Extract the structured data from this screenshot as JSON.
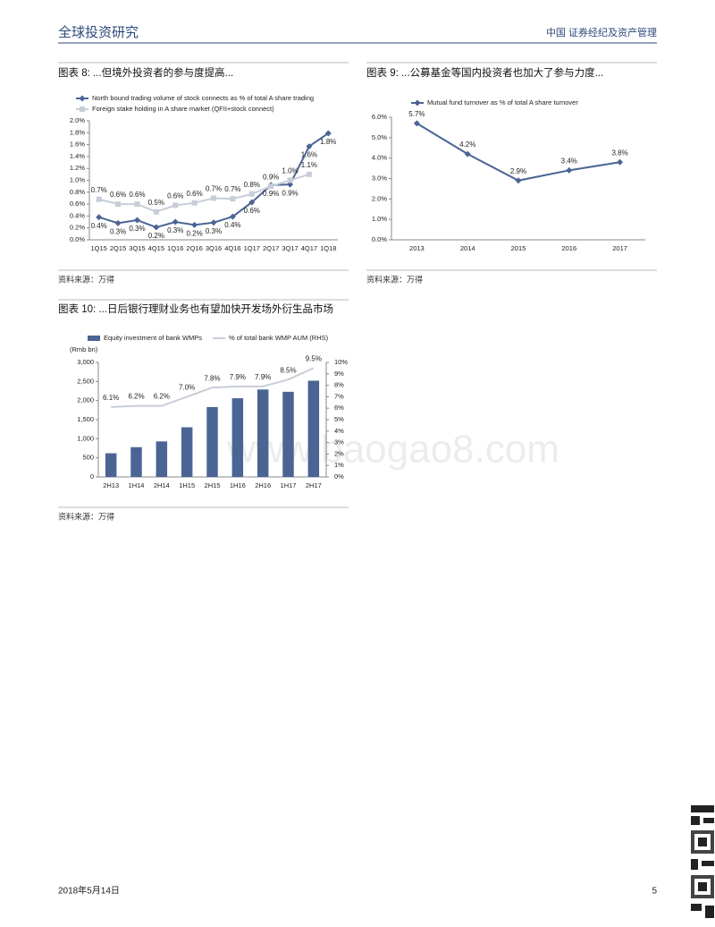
{
  "header": {
    "left": "全球投资研究",
    "right": "中国 证券经纪及资产管理"
  },
  "footer": {
    "date": "2018年5月14日",
    "page": "5"
  },
  "watermark": "www.baogao8.com",
  "chart_data": [
    {
      "type": "line",
      "title": "图表 8: ...但境外投资者的参与度提高...",
      "source": "资料来源：万得",
      "categories": [
        "1Q15",
        "2Q15",
        "3Q15",
        "4Q15",
        "1Q16",
        "2Q16",
        "3Q16",
        "4Q16",
        "1Q17",
        "2Q17",
        "3Q17",
        "4Q17",
        "1Q18"
      ],
      "series": [
        {
          "name": "North bound trading volume of stock connects as % of total A share trading",
          "color": "#4a6494",
          "marker": "diamond",
          "values": [
            0.38,
            0.28,
            0.33,
            0.21,
            0.3,
            0.25,
            0.29,
            0.39,
            0.63,
            0.92,
            0.93,
            1.57,
            1.79
          ],
          "value_labels": [
            "0.4%",
            "0.3%",
            "0.3%",
            "0.2%",
            "0.3%",
            "0.2%",
            "0.3%",
            "0.4%",
            "0.6%",
            "0.9%",
            "0.9%",
            "1.6%",
            "1.8%"
          ]
        },
        {
          "name": "Foreign stake holding in A share market (QFII+stock connect)",
          "color": "#c7cdd9",
          "marker": "square",
          "values": [
            0.68,
            0.6,
            0.6,
            0.47,
            0.58,
            0.62,
            0.7,
            0.69,
            0.77,
            0.9,
            1.0,
            1.1,
            null
          ],
          "value_labels": [
            "0.7%",
            "0.6%",
            "0.6%",
            "0.5%",
            "0.6%",
            "0.6%",
            "0.7%",
            "0.7%",
            "0.8%",
            "0.9%",
            "1.0%",
            "1.1%",
            null
          ]
        }
      ],
      "ylim": [
        0,
        2
      ],
      "yticks": [
        {
          "value": 0,
          "label": "0.0%"
        },
        {
          "value": 0.2,
          "label": "0.2%"
        },
        {
          "value": 0.4,
          "label": "0.4%"
        },
        {
          "value": 0.6,
          "label": "0.6%"
        },
        {
          "value": 0.8,
          "label": "0.8%"
        },
        {
          "value": 1.0,
          "label": "1.0%"
        },
        {
          "value": 1.2,
          "label": "1.2%"
        },
        {
          "value": 1.4,
          "label": "1.4%"
        },
        {
          "value": 1.6,
          "label": "1.6%"
        },
        {
          "value": 1.8,
          "label": "1.8%"
        },
        {
          "value": 2.0,
          "label": "2.0%"
        }
      ]
    },
    {
      "type": "line",
      "title": "图表 9: ...公募基金等国内投资者也加大了参与力度...",
      "source": "资料来源：万得",
      "categories": [
        "2013",
        "2014",
        "2015",
        "2016",
        "2017"
      ],
      "series": [
        {
          "name": "Mutual fund turnover as % of total A share turnover",
          "color": "#4a6494",
          "marker": "diamond",
          "values": [
            5.7,
            4.2,
            2.9,
            3.4,
            3.8
          ],
          "value_labels": [
            "5.7%",
            "4.2%",
            "2.9%",
            "3.4%",
            "3.8%"
          ]
        }
      ],
      "ylim": [
        0,
        6
      ],
      "yticks": [
        {
          "value": 0,
          "label": "0.0%"
        },
        {
          "value": 1,
          "label": "1.0%"
        },
        {
          "value": 2,
          "label": "2.0%"
        },
        {
          "value": 3,
          "label": "3.0%"
        },
        {
          "value": 4,
          "label": "4.0%"
        },
        {
          "value": 5,
          "label": "5.0%"
        },
        {
          "value": 6,
          "label": "6.0%"
        }
      ]
    },
    {
      "type": "bar",
      "title": "图表 10: ...日后银行理财业务也有望加快开发场外衍生品市场",
      "source": "资料来源：万得",
      "y_label": "(Rmb bn)",
      "categories": [
        "2H13",
        "1H14",
        "2H14",
        "1H15",
        "2H15",
        "1H16",
        "2H16",
        "1H17",
        "2H17"
      ],
      "series": [
        {
          "name": "Equity investment of bank WMPs",
          "color": "#4a6494",
          "values": [
            620,
            780,
            930,
            1300,
            1830,
            2060,
            2290,
            2230,
            2520
          ]
        },
        {
          "name": "% of total bank WMP AUM (RHS)",
          "color": "#c7cdd9",
          "type": "line",
          "axis": "y2",
          "values": [
            6.1,
            6.2,
            6.2,
            7.0,
            7.8,
            7.9,
            7.9,
            8.5,
            9.5
          ],
          "value_labels": [
            "6.1%",
            "6.2%",
            "6.2%",
            "7.0%",
            "7.8%",
            "7.9%",
            "7.9%",
            "8.5%",
            "9.5%"
          ]
        }
      ],
      "ylim": [
        0,
        3000
      ],
      "yticks": [
        0,
        500,
        {
          "value": 1000,
          "label": "1,000"
        },
        {
          "value": 1500,
          "label": "1,500"
        },
        {
          "value": 2000,
          "label": "2,000"
        },
        {
          "value": 2500,
          "label": "2,500"
        },
        {
          "value": 3000,
          "label": "3,000"
        }
      ],
      "y2lim": [
        0,
        10
      ],
      "y2ticks": [
        {
          "value": 0,
          "label": "0%"
        },
        {
          "value": 1,
          "label": "1%"
        },
        {
          "value": 2,
          "label": "2%"
        },
        {
          "value": 3,
          "label": "3%"
        },
        {
          "value": 4,
          "label": "4%"
        },
        {
          "value": 5,
          "label": "5%"
        },
        {
          "value": 6,
          "label": "6%"
        },
        {
          "value": 7,
          "label": "7%"
        },
        {
          "value": 8,
          "label": "8%"
        },
        {
          "value": 9,
          "label": "9%"
        },
        {
          "value": 10,
          "label": "10%"
        }
      ]
    }
  ]
}
